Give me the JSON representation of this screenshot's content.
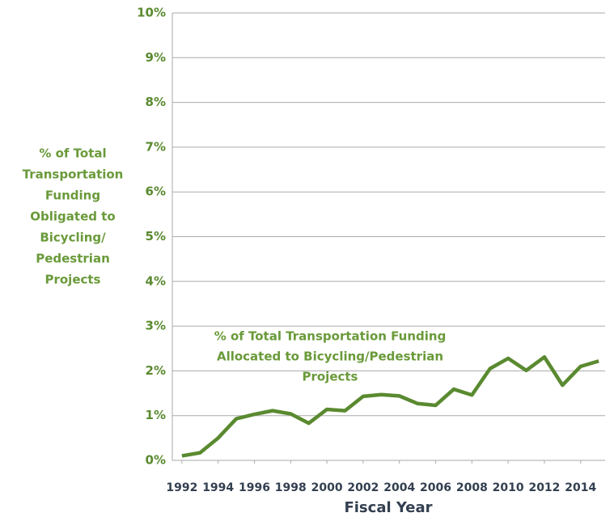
{
  "chart_data": {
    "type": "line",
    "y_label_lines": [
      "% of Total",
      "Transportation",
      "Funding",
      "Obligated to",
      "Bicycling/",
      "Pedestrian",
      "Projects"
    ],
    "x_label": "Fiscal Year",
    "annotation_lines": [
      "% of Total Transportation Funding",
      "Allocated to Bicycling/Pedestrian",
      "Projects"
    ],
    "x": [
      1992,
      1993,
      1994,
      1995,
      1996,
      1997,
      1998,
      1999,
      2000,
      2001,
      2002,
      2003,
      2004,
      2005,
      2006,
      2007,
      2008,
      2009,
      2010,
      2011,
      2012,
      2013,
      2014,
      2015
    ],
    "series": [
      {
        "color": "#5a8a30",
        "values": [
          0.1,
          0.17,
          0.5,
          0.93,
          1.03,
          1.11,
          1.04,
          0.83,
          1.14,
          1.11,
          1.43,
          1.47,
          1.44,
          1.27,
          1.23,
          1.59,
          1.46,
          2.05,
          2.28,
          2.01,
          2.31,
          1.68,
          2.1,
          2.22
        ]
      }
    ],
    "xlim": [
      1991.47,
      2015.35
    ],
    "xticks": [
      1992,
      1994,
      1996,
      1998,
      2000,
      2002,
      2004,
      2006,
      2008,
      2010,
      2012,
      2014
    ],
    "ylim": [
      0,
      10
    ],
    "yticks": [
      {
        "value": 0,
        "label": "0%"
      },
      {
        "value": 1,
        "label": "1%"
      },
      {
        "value": 2,
        "label": "2%"
      },
      {
        "value": 3,
        "label": "3%"
      },
      {
        "value": 4,
        "label": "4%"
      },
      {
        "value": 5,
        "label": "5%"
      },
      {
        "value": 6,
        "label": "6%"
      },
      {
        "value": 7,
        "label": "7%"
      },
      {
        "value": 8,
        "label": "8%"
      },
      {
        "value": 9,
        "label": "9%"
      },
      {
        "value": 10,
        "label": "10%"
      }
    ],
    "grid": true
  }
}
